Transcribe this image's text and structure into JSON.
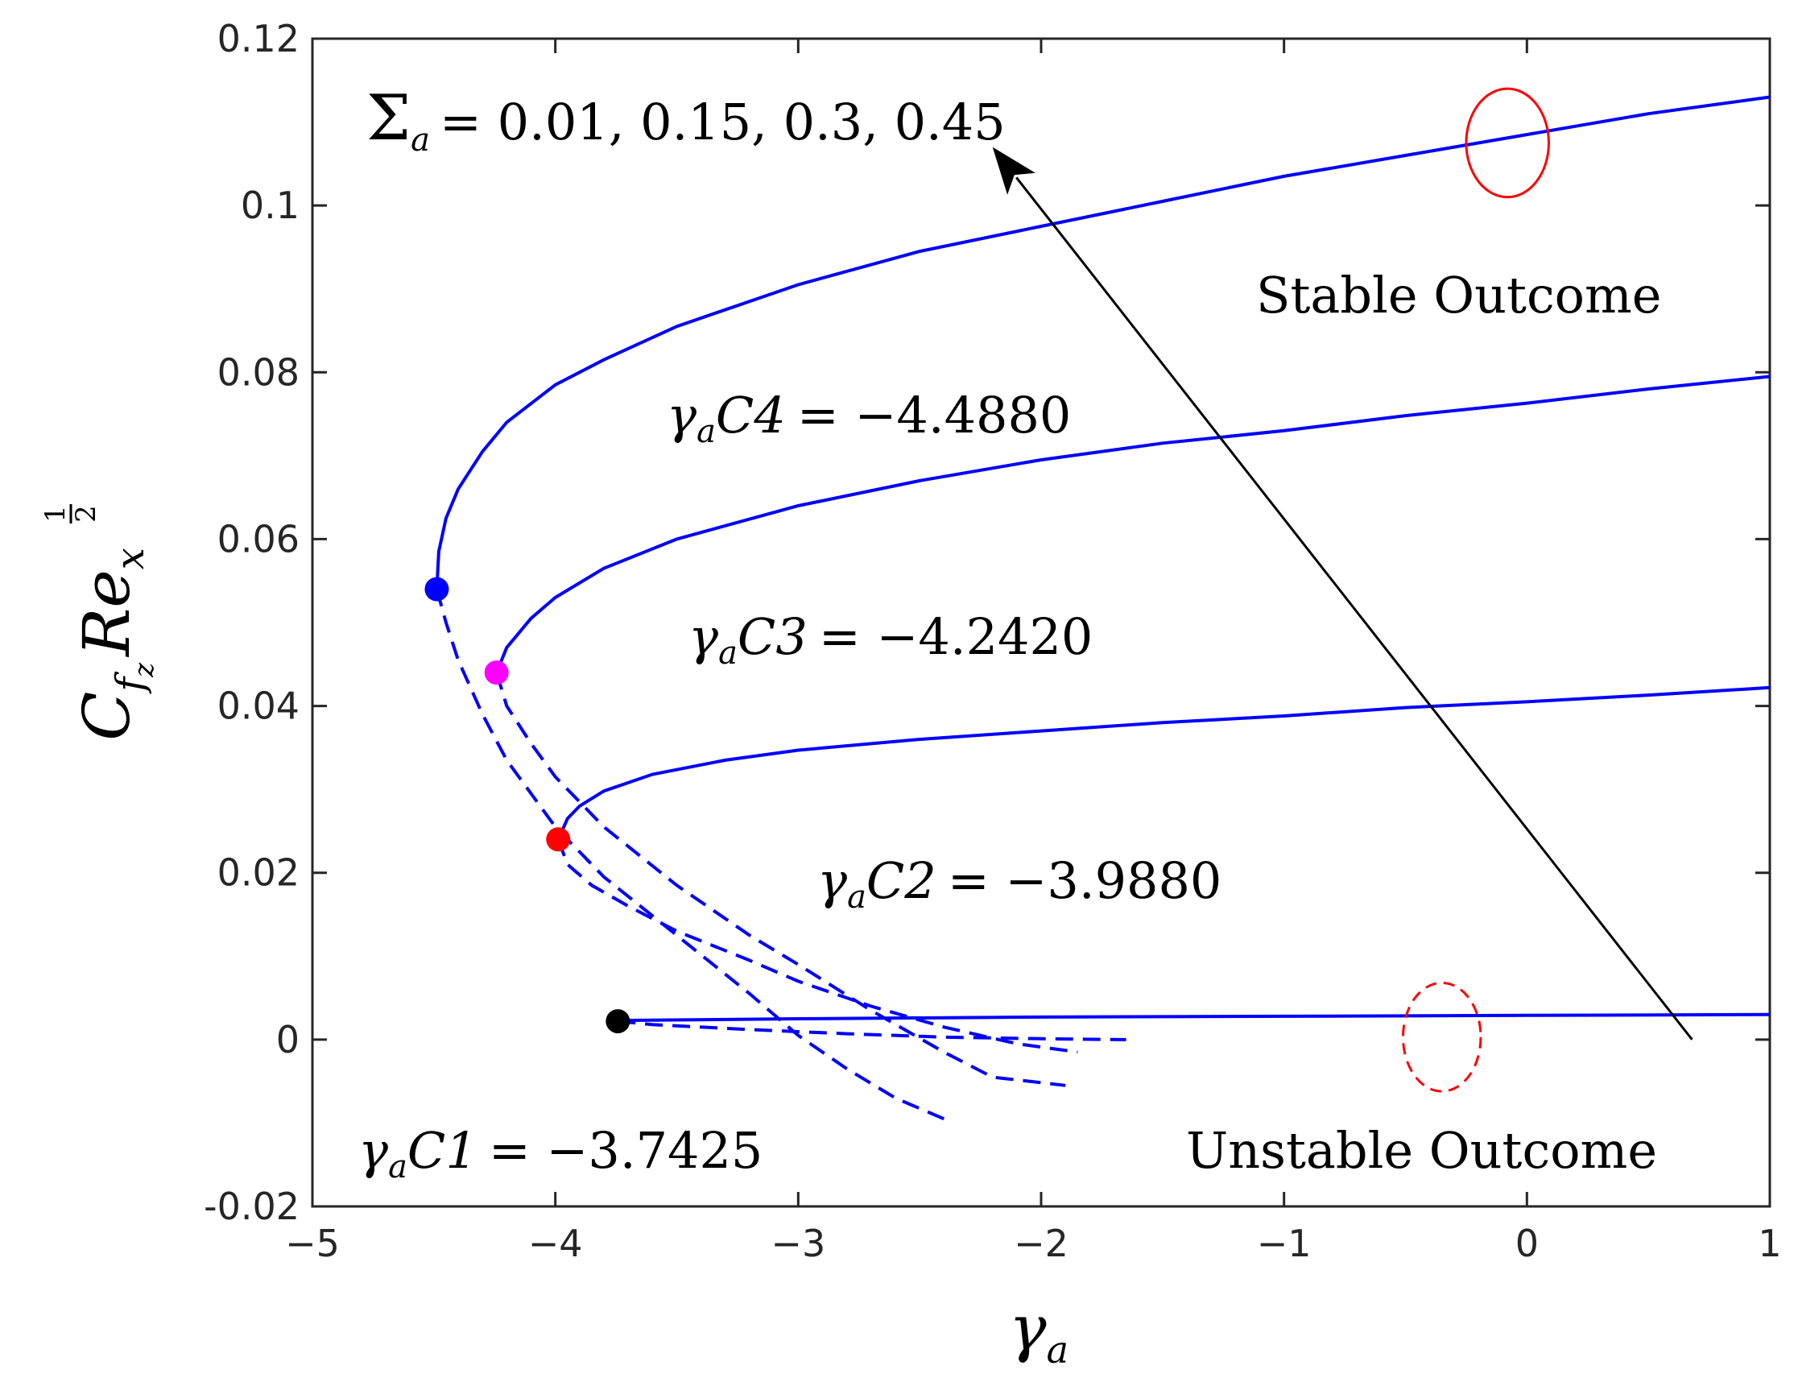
{
  "chart_data": {
    "type": "line",
    "title": "",
    "xlabel": "γ_a",
    "ylabel": "C_fz Re_x^(1/2)",
    "xlim": [
      -5,
      1
    ],
    "ylim": [
      -0.02,
      0.12
    ],
    "xticks": [
      -5,
      -4,
      -3,
      -2,
      -1,
      0,
      1
    ],
    "xtick_labels": [
      "−5",
      "−4",
      "−3",
      "−2",
      "−1",
      "0",
      "1"
    ],
    "yticks": [
      -0.02,
      0,
      0.02,
      0.04,
      0.06,
      0.08,
      0.1,
      0.12
    ],
    "ytick_labels": [
      "-0.02",
      "0",
      "0.02",
      "0.04",
      "0.06",
      "0.08",
      "0.1",
      "0.12"
    ],
    "grid": false,
    "series": [
      {
        "name": "Σa = 0.45",
        "critical": {
          "x": -4.488,
          "y": 0.054,
          "color": "#0000ff"
        },
        "upper": [
          [
            -4.488,
            0.054
          ],
          [
            -4.48,
            0.0585
          ],
          [
            -4.45,
            0.0625
          ],
          [
            -4.4,
            0.066
          ],
          [
            -4.3,
            0.0705
          ],
          [
            -4.2,
            0.074
          ],
          [
            -4.0,
            0.0785
          ],
          [
            -3.8,
            0.0815
          ],
          [
            -3.5,
            0.0855
          ],
          [
            -3.0,
            0.0905
          ],
          [
            -2.5,
            0.0945
          ],
          [
            -2.0,
            0.0975
          ],
          [
            -1.5,
            0.1005
          ],
          [
            -1.0,
            0.1035
          ],
          [
            -0.5,
            0.106
          ],
          [
            0.0,
            0.1085
          ],
          [
            0.5,
            0.111
          ],
          [
            1.0,
            0.113
          ]
        ],
        "lower": [
          [
            -4.488,
            0.054
          ],
          [
            -4.45,
            0.05
          ],
          [
            -4.4,
            0.0455
          ],
          [
            -4.3,
            0.039
          ],
          [
            -4.2,
            0.0335
          ],
          [
            -4.0,
            0.0255
          ],
          [
            -3.8,
            0.0195
          ],
          [
            -3.5,
            0.0125
          ],
          [
            -3.2,
            0.0055
          ],
          [
            -3.0,
            0.0005
          ],
          [
            -2.8,
            -0.0035
          ],
          [
            -2.6,
            -0.007
          ],
          [
            -2.4,
            -0.0095
          ]
        ]
      },
      {
        "name": "Σa = 0.3",
        "critical": {
          "x": -4.242,
          "y": 0.044,
          "color": "#ff00ff"
        },
        "upper": [
          [
            -4.242,
            0.044
          ],
          [
            -4.2,
            0.047
          ],
          [
            -4.1,
            0.0505
          ],
          [
            -4.0,
            0.053
          ],
          [
            -3.8,
            0.0565
          ],
          [
            -3.5,
            0.06
          ],
          [
            -3.0,
            0.064
          ],
          [
            -2.5,
            0.067
          ],
          [
            -2.0,
            0.0695
          ],
          [
            -1.5,
            0.0715
          ],
          [
            -1.0,
            0.073
          ],
          [
            -0.5,
            0.0748
          ],
          [
            0.0,
            0.0763
          ],
          [
            0.5,
            0.078
          ],
          [
            1.0,
            0.0795
          ]
        ],
        "lower": [
          [
            -4.242,
            0.044
          ],
          [
            -4.2,
            0.04
          ],
          [
            -4.1,
            0.0355
          ],
          [
            -4.0,
            0.0315
          ],
          [
            -3.8,
            0.0255
          ],
          [
            -3.5,
            0.0185
          ],
          [
            -3.2,
            0.0125
          ],
          [
            -3.0,
            0.009
          ],
          [
            -2.7,
            0.0035
          ],
          [
            -2.4,
            -0.0015
          ],
          [
            -2.2,
            -0.0045
          ],
          [
            -1.9,
            -0.0055
          ]
        ]
      },
      {
        "name": "Σa = 0.15",
        "critical": {
          "x": -3.988,
          "y": 0.024,
          "color": "#ff0000"
        },
        "upper": [
          [
            -3.988,
            0.024
          ],
          [
            -3.95,
            0.0265
          ],
          [
            -3.9,
            0.028
          ],
          [
            -3.8,
            0.0298
          ],
          [
            -3.6,
            0.0318
          ],
          [
            -3.3,
            0.0335
          ],
          [
            -3.0,
            0.0347
          ],
          [
            -2.5,
            0.036
          ],
          [
            -2.0,
            0.037
          ],
          [
            -1.5,
            0.038
          ],
          [
            -1.0,
            0.0388
          ],
          [
            -0.5,
            0.0398
          ],
          [
            0.0,
            0.0405
          ],
          [
            0.5,
            0.0413
          ],
          [
            1.0,
            0.0422
          ]
        ],
        "lower": [
          [
            -3.988,
            0.024
          ],
          [
            -3.95,
            0.021
          ],
          [
            -3.85,
            0.0185
          ],
          [
            -3.7,
            0.016
          ],
          [
            -3.5,
            0.013
          ],
          [
            -3.2,
            0.0095
          ],
          [
            -3.0,
            0.007
          ],
          [
            -2.7,
            0.004
          ],
          [
            -2.4,
            0.0015
          ],
          [
            -2.1,
            -0.0005
          ],
          [
            -1.85,
            -0.0015
          ]
        ]
      },
      {
        "name": "Σa = 0.01",
        "critical": {
          "x": -3.7425,
          "y": 0.0022,
          "color": "#000000"
        },
        "upper": [
          [
            -3.7425,
            0.0022
          ],
          [
            -3.7,
            0.0023
          ],
          [
            -3.0,
            0.0025
          ],
          [
            -2.0,
            0.0027
          ],
          [
            -1.0,
            0.0028
          ],
          [
            0.0,
            0.0029
          ],
          [
            1.0,
            0.003
          ]
        ],
        "lower": [
          [
            -3.7425,
            0.0022
          ],
          [
            -3.6,
            0.0018
          ],
          [
            -3.2,
            0.0012
          ],
          [
            -2.8,
            0.0007
          ],
          [
            -2.4,
            0.0003
          ],
          [
            -2.0,
            0.0001
          ],
          [
            -1.65,
            0.0
          ]
        ]
      }
    ],
    "annotations": {
      "sigma_prefix": "Σ",
      "sigma_sub": "a",
      "sigma_values": "= 0.01, 0.15, 0.3, 0.45",
      "c4_var": "γ",
      "c4_sub": "a",
      "c4_name": "C4",
      "c4_value": "= −4.4880",
      "c3_var": "γ",
      "c3_sub": "a",
      "c3_name": "C3",
      "c3_value": "= −4.2420",
      "c2_var": "γ",
      "c2_sub": "a",
      "c2_name": "C2",
      "c2_value": "= −3.9880",
      "c1_var": "γ",
      "c1_sub": "a",
      "c1_name": "C1",
      "c1_value": "= −3.7425",
      "stable": "Stable Outcome",
      "unstable": "Unstable Outcome"
    },
    "ylabel_parts": {
      "C": "C",
      "f": "f",
      "z": "z",
      "Re": "Re",
      "x": "x",
      "num": "1",
      "den": "2"
    },
    "xlabel_parts": {
      "gamma": "γ",
      "sub": "a"
    },
    "arrow": {
      "from": [
        0.68,
        0.0
      ],
      "to": [
        -2.2,
        0.107
      ]
    },
    "ellipses": [
      {
        "cx": -0.08,
        "cy": 0.1075,
        "rx": 0.17,
        "ry": 0.0065,
        "color": "#ff0000",
        "style": "solid"
      },
      {
        "cx": -0.35,
        "cy": 0.0003,
        "rx": 0.16,
        "ry": 0.0065,
        "color": "#ff0000",
        "style": "dashed"
      }
    ],
    "colors": {
      "curve": "#0000ff",
      "axis": "#262626",
      "arrow": "#000000"
    }
  }
}
